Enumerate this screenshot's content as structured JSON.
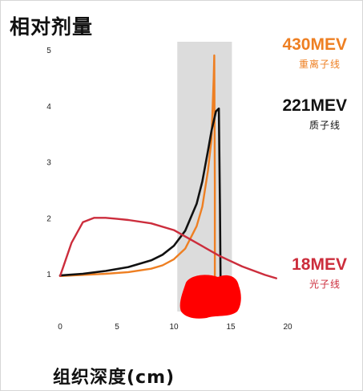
{
  "chart_data": {
    "type": "line",
    "ylabel": "相对剂量",
    "xlabel": "组织深度(cm)",
    "xlim": [
      0,
      20
    ],
    "ylim": [
      0.5,
      5
    ],
    "x_ticks": [
      0,
      5,
      10,
      15,
      20
    ],
    "y_ticks": [
      1,
      2,
      3,
      4,
      5
    ],
    "highlight_region_x": [
      10.3,
      15.1
    ],
    "series": [
      {
        "name": "430MEV",
        "sublabel": "重离子线",
        "color": "#ee7f22",
        "x": [
          0,
          2,
          4,
          6,
          8,
          9,
          10,
          11,
          12,
          12.5,
          13,
          13.3,
          13.5,
          13.55,
          13.6,
          13.6
        ],
        "y": [
          0.96,
          0.98,
          1.0,
          1.03,
          1.09,
          1.15,
          1.26,
          1.45,
          1.85,
          2.2,
          2.85,
          3.4,
          4.5,
          4.9,
          2.6,
          0.55
        ]
      },
      {
        "name": "221MEV",
        "sublabel": "质子线",
        "color": "#111111",
        "x": [
          0,
          2,
          4,
          6,
          8,
          9,
          10,
          11,
          12,
          12.5,
          13,
          13.3,
          13.7,
          13.95,
          14.05,
          14.1
        ],
        "y": [
          0.97,
          1.0,
          1.05,
          1.12,
          1.24,
          1.34,
          1.5,
          1.77,
          2.25,
          2.65,
          3.2,
          3.55,
          3.9,
          3.95,
          2.2,
          0.95
        ]
      },
      {
        "name": "18MEV",
        "sublabel": "光子线",
        "color": "#cc2d3c",
        "x": [
          0,
          1,
          2,
          3,
          4,
          5,
          6,
          8,
          10,
          12,
          14,
          16,
          18,
          19
        ],
        "y": [
          0.96,
          1.55,
          1.92,
          2.0,
          2.0,
          1.98,
          1.96,
          1.9,
          1.78,
          1.55,
          1.32,
          1.13,
          0.98,
          0.92
        ]
      }
    ],
    "annotation_blob_color": "#ff0000"
  }
}
